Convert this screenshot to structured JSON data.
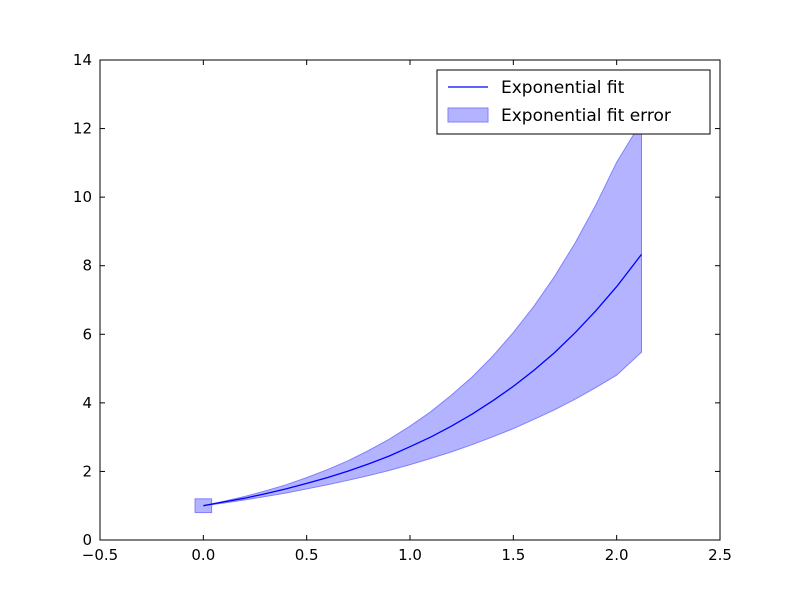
{
  "chart_data": {
    "type": "line",
    "title": "",
    "xlabel": "",
    "ylabel": "",
    "xlim": [
      -0.5,
      2.5
    ],
    "ylim": [
      0,
      14
    ],
    "xticks": [
      -0.5,
      0.0,
      0.5,
      1.0,
      1.5,
      2.0,
      2.5
    ],
    "xtick_labels": [
      "−0.5",
      "0.0",
      "0.5",
      "1.0",
      "1.5",
      "2.0",
      "2.5"
    ],
    "yticks": [
      0,
      2,
      4,
      6,
      8,
      10,
      12,
      14
    ],
    "ytick_labels": [
      "0",
      "2",
      "4",
      "6",
      "8",
      "10",
      "12",
      "14"
    ],
    "grid": false,
    "legend_position": "top-right",
    "colors": {
      "line": "#0000ff",
      "band_fill": "#b3b3ff",
      "band_edge": "#8080ff"
    },
    "series": [
      {
        "name": "Exponential fit",
        "style": "line",
        "x": [
          0.0,
          0.1,
          0.2,
          0.3,
          0.4,
          0.5,
          0.6,
          0.7,
          0.8,
          0.9,
          1.0,
          1.1,
          1.2,
          1.3,
          1.4,
          1.5,
          1.6,
          1.7,
          1.8,
          1.9,
          2.0,
          2.12
        ],
        "y": [
          1.0,
          1.11,
          1.22,
          1.35,
          1.49,
          1.65,
          1.82,
          2.01,
          2.22,
          2.45,
          2.72,
          3.0,
          3.32,
          3.67,
          4.06,
          4.48,
          4.95,
          5.47,
          6.05,
          6.69,
          7.39,
          8.33
        ]
      },
      {
        "name": "Exponential fit error",
        "style": "band",
        "x": [
          0.0,
          0.1,
          0.2,
          0.3,
          0.4,
          0.5,
          0.6,
          0.7,
          0.8,
          0.9,
          1.0,
          1.1,
          1.2,
          1.3,
          1.4,
          1.5,
          1.6,
          1.7,
          1.8,
          1.9,
          2.0,
          2.12
        ],
        "lower": [
          1.0,
          1.08,
          1.17,
          1.27,
          1.37,
          1.49,
          1.61,
          1.74,
          1.88,
          2.03,
          2.2,
          2.38,
          2.57,
          2.78,
          3.01,
          3.25,
          3.52,
          3.8,
          4.11,
          4.45,
          4.81,
          5.48
        ],
        "upper": [
          1.0,
          1.13,
          1.27,
          1.43,
          1.61,
          1.82,
          2.05,
          2.31,
          2.61,
          2.94,
          3.32,
          3.74,
          4.22,
          4.75,
          5.36,
          6.05,
          6.82,
          7.69,
          8.67,
          9.78,
          11.02,
          12.2
        ]
      },
      {
        "name": "Exponential fit error",
        "style": "box",
        "x": [
          -0.04,
          0.04
        ],
        "lower": [
          0.8
        ],
        "upper": [
          1.2
        ]
      }
    ]
  }
}
